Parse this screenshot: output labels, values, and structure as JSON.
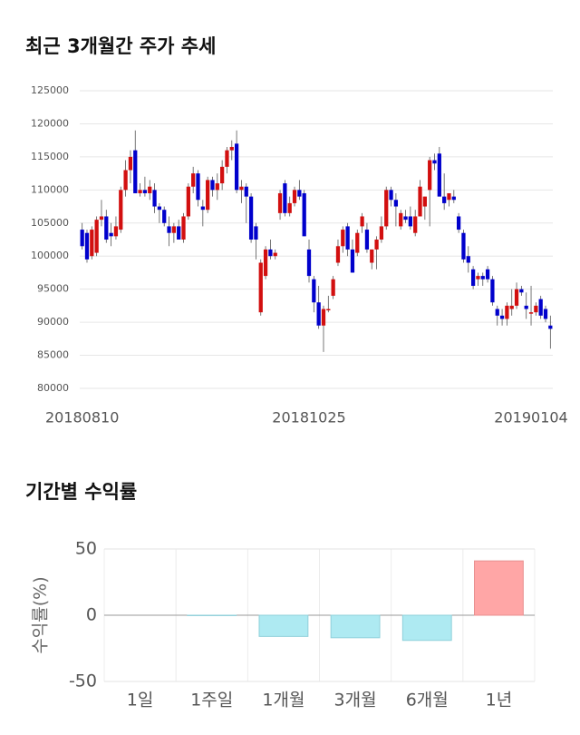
{
  "chart_data": [
    {
      "type": "candlestick",
      "title": "최근 3개월간 주가 추세",
      "up_color": "#d20f0f",
      "down_color": "#0000cc",
      "grid": true,
      "ylim": [
        80000,
        125000
      ],
      "yticks": [
        80000,
        85000,
        90000,
        95000,
        100000,
        105000,
        110000,
        115000,
        120000,
        125000
      ],
      "categories": [
        "20180810",
        null,
        null,
        null,
        null,
        null,
        null,
        null,
        null,
        null,
        null,
        null,
        null,
        null,
        null,
        null,
        null,
        null,
        null,
        null,
        null,
        null,
        null,
        null,
        null,
        null,
        null,
        null,
        null,
        null,
        null,
        null,
        null,
        null,
        null,
        null,
        null,
        null,
        null,
        null,
        null,
        null,
        null,
        null,
        null,
        null,
        null,
        "20181025",
        null,
        null,
        null,
        null,
        null,
        null,
        null,
        null,
        null,
        null,
        null,
        null,
        null,
        null,
        null,
        null,
        null,
        null,
        null,
        null,
        null,
        null,
        null,
        null,
        null,
        null,
        null,
        null,
        null,
        null,
        null,
        null,
        null,
        null,
        null,
        null,
        null,
        null,
        null,
        null,
        null,
        null,
        null,
        null,
        null,
        "20190104",
        null,
        null,
        null,
        null
      ],
      "ohlc": [
        [
          104000,
          105000,
          101000,
          101500
        ],
        [
          103500,
          104000,
          99000,
          99500
        ],
        [
          100000,
          104500,
          99500,
          104000
        ],
        [
          100500,
          106000,
          100000,
          105500
        ],
        [
          105500,
          108500,
          104500,
          106000
        ],
        [
          106000,
          107000,
          102000,
          102500
        ],
        [
          103500,
          105000,
          101500,
          103000
        ],
        [
          103000,
          106000,
          102500,
          104500
        ],
        [
          104000,
          110500,
          103500,
          110000
        ],
        [
          110000,
          114500,
          109000,
          113000
        ],
        [
          113000,
          116000,
          111000,
          115000
        ],
        [
          116000,
          119000,
          109500,
          109500
        ],
        [
          109500,
          111000,
          109000,
          110000
        ],
        [
          110000,
          112000,
          109000,
          109500
        ],
        [
          109500,
          111500,
          108500,
          110500
        ],
        [
          110000,
          111000,
          106500,
          107500
        ],
        [
          107500,
          108000,
          105000,
          107000
        ],
        [
          107000,
          107500,
          104500,
          105000
        ],
        [
          104500,
          106000,
          101500,
          103500
        ],
        [
          103500,
          105000,
          102000,
          104500
        ],
        [
          104500,
          105500,
          102500,
          102500
        ],
        [
          102500,
          106500,
          102000,
          106000
        ],
        [
          106000,
          111000,
          105500,
          110500
        ],
        [
          110500,
          113500,
          109500,
          112500
        ],
        [
          112500,
          113000,
          107500,
          108500
        ],
        [
          107500,
          108500,
          104500,
          107000
        ],
        [
          107000,
          112000,
          106500,
          111500
        ],
        [
          111500,
          112000,
          109000,
          110000
        ],
        [
          110000,
          112500,
          108500,
          111000
        ],
        [
          111000,
          114500,
          110000,
          113500
        ],
        [
          113500,
          116500,
          112500,
          116000
        ],
        [
          116000,
          117500,
          114500,
          116500
        ],
        [
          117000,
          119000,
          109500,
          110000
        ],
        [
          110000,
          111500,
          108000,
          110500
        ],
        [
          110500,
          111000,
          105000,
          109000
        ],
        [
          109000,
          109500,
          102000,
          102500
        ],
        [
          104500,
          105000,
          99500,
          102500
        ],
        [
          91500,
          99500,
          91000,
          99000
        ],
        [
          97000,
          101500,
          96500,
          101000
        ],
        [
          101000,
          102500,
          99500,
          100000
        ],
        [
          100000,
          101000,
          99500,
          100500
        ],
        [
          106500,
          110000,
          105500,
          109500
        ],
        [
          111000,
          111500,
          106000,
          106500
        ],
        [
          106500,
          109000,
          106000,
          108000
        ],
        [
          108000,
          110500,
          107500,
          110000
        ],
        [
          110000,
          111500,
          108500,
          109000
        ],
        [
          109500,
          110000,
          103000,
          103000
        ],
        [
          101000,
          102500,
          96000,
          97000
        ],
        [
          96500,
          97000,
          91500,
          93000
        ],
        [
          93000,
          95500,
          89000,
          89500
        ],
        [
          89500,
          92500,
          85500,
          92000
        ],
        [
          92000,
          94000,
          91500,
          92000
        ],
        [
          94000,
          97000,
          93500,
          96500
        ],
        [
          99000,
          102500,
          98500,
          101500
        ],
        [
          101500,
          104500,
          100500,
          104000
        ],
        [
          104500,
          105000,
          100000,
          101000
        ],
        [
          101000,
          102500,
          97500,
          97500
        ],
        [
          100500,
          104000,
          100000,
          103500
        ],
        [
          104500,
          106500,
          103500,
          106000
        ],
        [
          104000,
          105000,
          100500,
          101000
        ],
        [
          99000,
          101000,
          98000,
          101000
        ],
        [
          101000,
          103000,
          98000,
          102500
        ],
        [
          102500,
          106000,
          102000,
          104500
        ],
        [
          104500,
          110500,
          104000,
          110000
        ],
        [
          110000,
          110500,
          107500,
          108500
        ],
        [
          108500,
          109500,
          104500,
          107500
        ],
        [
          104500,
          107000,
          104000,
          106500
        ],
        [
          106000,
          107000,
          105000,
          105500
        ],
        [
          106000,
          107500,
          104000,
          104500
        ],
        [
          103500,
          107000,
          103000,
          106000
        ],
        [
          106000,
          111500,
          106000,
          110500
        ],
        [
          107500,
          109000,
          105500,
          109000
        ],
        [
          110000,
          115000,
          104500,
          114500
        ],
        [
          114500,
          115500,
          113000,
          114000
        ],
        [
          115500,
          116500,
          109000,
          109000
        ],
        [
          109000,
          112500,
          107000,
          108000
        ],
        [
          108500,
          109500,
          107500,
          109500
        ],
        [
          109000,
          110000,
          108000,
          108500
        ],
        [
          106000,
          106500,
          103500,
          104000
        ],
        [
          103500,
          104000,
          99000,
          99500
        ],
        [
          100000,
          101500,
          97500,
          99000
        ],
        [
          98000,
          98500,
          95000,
          95500
        ],
        [
          96500,
          97500,
          95500,
          97000
        ],
        [
          97000,
          97500,
          95500,
          96500
        ],
        [
          98000,
          98500,
          96000,
          96500
        ],
        [
          96500,
          97000,
          92500,
          93000
        ],
        [
          92000,
          92500,
          89500,
          91000
        ],
        [
          91000,
          92000,
          89500,
          90500
        ],
        [
          90500,
          93000,
          89500,
          92500
        ],
        [
          92000,
          95000,
          91000,
          92500
        ],
        [
          92500,
          96000,
          92000,
          95000
        ],
        [
          95000,
          95500,
          94000,
          94500
        ],
        [
          92500,
          94500,
          90500,
          92000
        ],
        [
          91500,
          95500,
          89500,
          91500
        ],
        [
          91500,
          93000,
          91000,
          92500
        ],
        [
          93500,
          94000,
          90500,
          91000
        ],
        [
          92000,
          92500,
          90000,
          90500
        ],
        [
          89500,
          91000,
          86000,
          89000
        ]
      ]
    },
    {
      "type": "bar",
      "title": "기간별 수익률",
      "y_label": "수익률(%)",
      "up_color": "#ffa6a6",
      "down_color": "#aeeaf2",
      "grid": true,
      "ylim": [
        -50,
        50
      ],
      "yticks": [
        -50,
        0,
        50
      ],
      "categories": [
        "1일",
        "1주일",
        "1개월",
        "3개월",
        "6개월",
        "1년"
      ],
      "values": [
        0,
        -0.3,
        -16,
        -17,
        -19,
        41
      ]
    }
  ]
}
